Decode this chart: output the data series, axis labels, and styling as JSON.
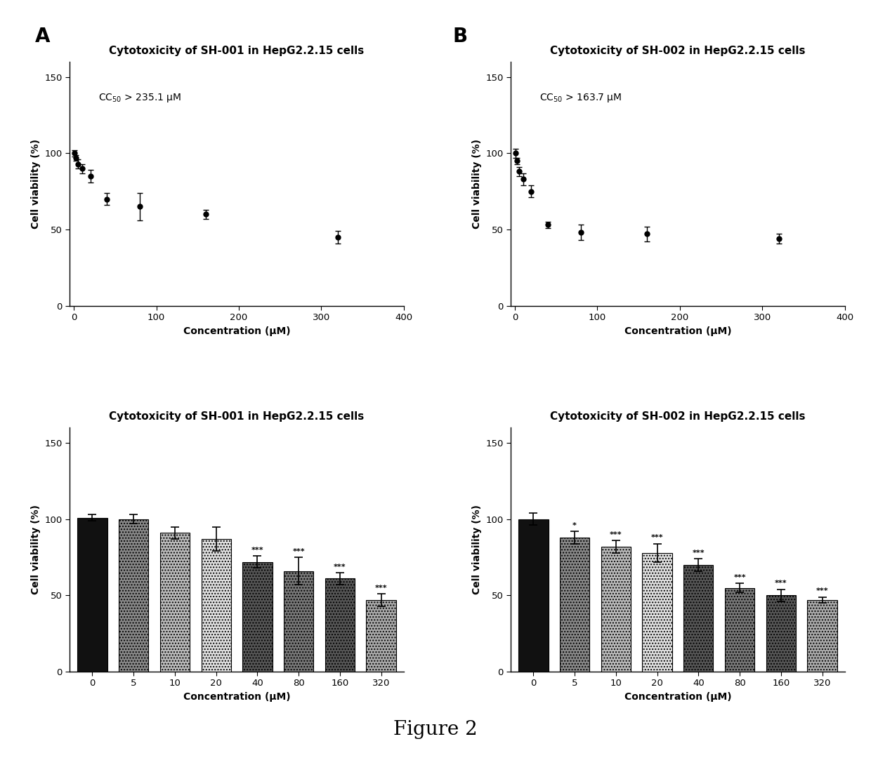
{
  "panel_A_title": "Cytotoxicity of SH-001 in HepG2.2.15 cells",
  "panel_B_title": "Cytotoxicity of SH-002 in HepG2.2.15 cells",
  "panel_A_cc50": "CC$_{50}$ > 235.1 μM",
  "panel_B_cc50": "CC$_{50}$ > 163.7 μM",
  "xlabel_curve": "Concentration (μM)",
  "ylabel": "Cell viability (%)",
  "xlabel_bar": "Concentration (μM)",
  "curve_A_x": [
    1,
    2.5,
    5,
    10,
    20,
    40,
    80,
    160,
    320
  ],
  "curve_A_y": [
    100,
    97,
    93,
    90,
    85,
    70,
    65,
    60,
    45
  ],
  "curve_A_err": [
    2,
    2,
    3,
    3,
    4,
    4,
    9,
    3,
    4
  ],
  "curve_B_x": [
    1,
    2.5,
    5,
    10,
    20,
    40,
    80,
    160,
    320
  ],
  "curve_B_y": [
    100,
    95,
    88,
    83,
    75,
    53,
    48,
    47,
    44
  ],
  "curve_B_err": [
    3,
    2,
    3,
    4,
    4,
    2,
    5,
    5,
    3
  ],
  "bar_x_labels": [
    "0",
    "5",
    "10",
    "20",
    "40",
    "80",
    "160",
    "320"
  ],
  "bar_A_y": [
    101,
    100,
    91,
    87,
    72,
    66,
    61,
    47
  ],
  "bar_A_err": [
    2,
    3,
    4,
    8,
    4,
    9,
    4,
    4
  ],
  "bar_A_sig": [
    "",
    "",
    "",
    "",
    "***",
    "***",
    "***",
    "***"
  ],
  "bar_B_y": [
    100,
    88,
    82,
    78,
    70,
    55,
    50,
    47
  ],
  "bar_B_err": [
    4,
    4,
    4,
    6,
    4,
    3,
    4,
    2
  ],
  "bar_B_sig": [
    "",
    "*",
    "***",
    "***",
    "***",
    "***",
    "***",
    "***"
  ],
  "bar_A_colors": [
    "#111111",
    "#888888",
    "#bbbbbb",
    "#e8e8e8",
    "#555555",
    "#777777",
    "#555555",
    "#aaaaaa"
  ],
  "bar_B_colors": [
    "#111111",
    "#888888",
    "#bbbbbb",
    "#e8e8e8",
    "#555555",
    "#777777",
    "#555555",
    "#aaaaaa"
  ],
  "figure_label_A": "A",
  "figure_label_B": "B",
  "figure_caption": "Figure 2",
  "ylim_curve": [
    0,
    160
  ],
  "ylim_bar": [
    0,
    160
  ],
  "yticks": [
    0,
    50,
    100,
    150
  ],
  "xlim_curve": [
    -5,
    400
  ],
  "xticks_curve": [
    0,
    100,
    200,
    300,
    400
  ]
}
